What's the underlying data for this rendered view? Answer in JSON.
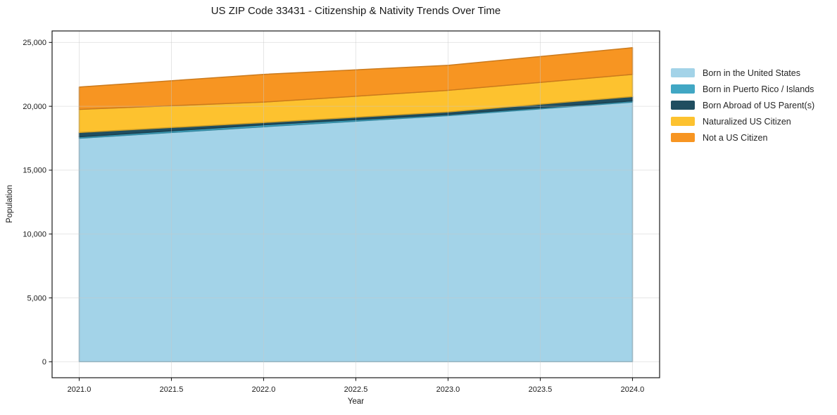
{
  "chart_data": {
    "type": "area",
    "stacked": true,
    "title": "US ZIP Code 33431 - Citizenship & Nativity Trends Over Time",
    "xlabel": "Year",
    "ylabel": "Population",
    "x": [
      2021,
      2022,
      2023,
      2024
    ],
    "series": [
      {
        "name": "Born in the United States",
        "color": "#a3d3e8",
        "values": [
          17500,
          18400,
          19270,
          20330
        ]
      },
      {
        "name": "Born in Puerto Rico / Islands",
        "color": "#41a7c4",
        "values": [
          110,
          150,
          90,
          100
        ]
      },
      {
        "name": "Born Abroad of US Parent(s)",
        "color": "#204e60",
        "values": [
          340,
          180,
          200,
          330
        ]
      },
      {
        "name": "Naturalized US Citizen",
        "color": "#fdc22f",
        "values": [
          1810,
          1600,
          1690,
          1740
        ]
      },
      {
        "name": "Not a US Citizen",
        "color": "#f79522",
        "values": [
          1750,
          2170,
          1960,
          2090
        ]
      }
    ],
    "stack_totals": [
      21500,
      22500,
      23210,
      24590
    ],
    "xticks": {
      "values": [
        2021.0,
        2021.5,
        2022.0,
        2022.5,
        2023.0,
        2023.5,
        2024.0
      ],
      "labels": [
        "2021.0",
        "2021.5",
        "2022.0",
        "2022.5",
        "2023.0",
        "2023.5",
        "2024.0"
      ]
    },
    "yticks": {
      "values": [
        0,
        5000,
        10000,
        15000,
        20000,
        25000
      ],
      "labels": [
        "0",
        "5,000",
        "10,000",
        "15,000",
        "20,000",
        "25,000"
      ]
    },
    "xlim": [
      2020.853,
      2024.147
    ],
    "ylim": [
      -1250,
      25900
    ],
    "grid": "both",
    "legend_position": "right",
    "legend_frame": false
  }
}
